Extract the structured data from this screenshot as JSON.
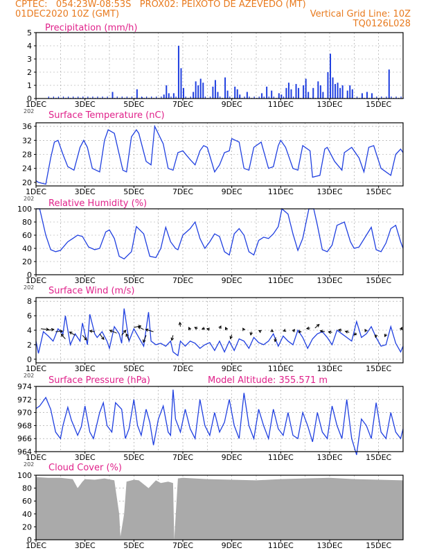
{
  "header": {
    "line1": "CPTEC:   054:23W-08:53S   PROX02: PEIXOTO DE AZEVEDO (MT)",
    "line2_left": "01DEC2020 10Z (GMT)",
    "line2_right": "Vertical Grid Line: 10Z",
    "line3_right": "TQ0126L028"
  },
  "colors": {
    "header": "#e87a1e",
    "title": "#e0218a",
    "series": "#1f3fe0",
    "cloud": "#aaaaaa",
    "grid": "#999999"
  },
  "chart_data": [
    {
      "type": "bar",
      "title": "Precipitation (mm/h)",
      "ylim": [
        0,
        5
      ],
      "yticks": [
        "0",
        "1",
        "2",
        "3",
        "4",
        "5"
      ],
      "xticks": [
        "1DEC",
        "3DEC",
        "5DEC",
        "7DEC",
        "9DEC",
        "11DEC",
        "13DEC",
        "15DEC"
      ],
      "xcut": "202",
      "spikes": [
        [
          4.1,
          0.5
        ],
        [
          5.1,
          0.7
        ],
        [
          5.3,
          0.1
        ],
        [
          6.2,
          0.3
        ],
        [
          6.3,
          1.0
        ],
        [
          6.4,
          0.4
        ],
        [
          6.6,
          0.4
        ],
        [
          6.8,
          4.0
        ],
        [
          6.9,
          2.3
        ],
        [
          7.0,
          0.8
        ],
        [
          7.4,
          0.5
        ],
        [
          7.5,
          1.3
        ],
        [
          7.6,
          1.0
        ],
        [
          7.7,
          1.5
        ],
        [
          7.8,
          1.2
        ],
        [
          8.2,
          0.9
        ],
        [
          8.3,
          1.4
        ],
        [
          8.4,
          0.5
        ],
        [
          8.7,
          1.6
        ],
        [
          8.8,
          0.6
        ],
        [
          9.1,
          0.9
        ],
        [
          9.2,
          0.7
        ],
        [
          9.3,
          0.3
        ],
        [
          9.6,
          0.5
        ],
        [
          10.2,
          0.4
        ],
        [
          10.4,
          0.9
        ],
        [
          10.6,
          0.6
        ],
        [
          10.9,
          0.4
        ],
        [
          11.0,
          0.3
        ],
        [
          11.2,
          0.8
        ],
        [
          11.3,
          1.2
        ],
        [
          11.4,
          0.7
        ],
        [
          11.6,
          1.1
        ],
        [
          11.7,
          0.8
        ],
        [
          11.9,
          1.0
        ],
        [
          12.0,
          1.5
        ],
        [
          12.1,
          0.5
        ],
        [
          12.3,
          0.8
        ],
        [
          12.5,
          1.3
        ],
        [
          12.6,
          1.0
        ],
        [
          12.7,
          0.5
        ],
        [
          12.9,
          2.0
        ],
        [
          13.0,
          3.4
        ],
        [
          13.1,
          1.6
        ],
        [
          13.2,
          1.1
        ],
        [
          13.3,
          1.2
        ],
        [
          13.4,
          0.8
        ],
        [
          13.5,
          1.0
        ],
        [
          13.7,
          0.6
        ],
        [
          13.8,
          1.0
        ],
        [
          13.9,
          0.7
        ],
        [
          14.3,
          0.4
        ],
        [
          14.5,
          0.5
        ],
        [
          14.7,
          0.4
        ],
        [
          15.4,
          2.2
        ]
      ],
      "drizzle": [
        0.05,
        0.15
      ]
    },
    {
      "type": "line",
      "title": "Surface Temperature (nC)",
      "ylim": [
        19,
        37
      ],
      "yticks": [
        "20",
        "24",
        "28",
        "32",
        "36"
      ],
      "xticks": [
        "1DEC",
        "3DEC",
        "5DEC",
        "7DEC",
        "9DEC",
        "11DEC",
        "13DEC",
        "15DEC"
      ],
      "xcut": "202",
      "x": [
        1.0,
        1.1,
        1.4,
        1.6,
        1.75,
        1.9,
        2.1,
        2.3,
        2.55,
        2.8,
        2.95,
        3.1,
        3.3,
        3.6,
        3.8,
        3.95,
        4.2,
        4.55,
        4.7,
        4.9,
        5.1,
        5.2,
        5.5,
        5.7,
        5.85,
        6.2,
        6.4,
        6.6,
        6.8,
        7.0,
        7.3,
        7.5,
        7.7,
        7.85,
        8.0,
        8.3,
        8.5,
        8.7,
        8.9,
        9.0,
        9.3,
        9.5,
        9.7,
        9.9,
        10.2,
        10.5,
        10.7,
        10.9,
        11.0,
        11.2,
        11.5,
        11.7,
        11.9,
        12.2,
        12.3,
        12.6,
        12.8,
        12.9,
        13.2,
        13.5,
        13.6,
        13.9,
        14.2,
        14.4,
        14.6,
        14.8,
        15.1,
        15.5,
        15.7,
        15.9,
        16.0
      ],
      "y": [
        20.5,
        20.0,
        19.5,
        27.0,
        31.5,
        32.0,
        28.0,
        24.5,
        23.5,
        30.0,
        32.0,
        30.0,
        24.0,
        23.0,
        32.0,
        35.0,
        34.0,
        23.5,
        23.0,
        33.0,
        35.0,
        34.0,
        26.0,
        25.0,
        36.0,
        31.0,
        24.0,
        23.5,
        28.5,
        29.0,
        26.5,
        25.0,
        29.0,
        30.5,
        30.0,
        23.0,
        25.0,
        28.5,
        29.0,
        32.5,
        31.5,
        24.0,
        23.5,
        30.0,
        31.5,
        24.0,
        24.5,
        30.5,
        32.0,
        30.0,
        24.0,
        23.5,
        30.5,
        29.0,
        21.5,
        22.0,
        29.5,
        30.0,
        26.0,
        23.5,
        28.5,
        30.0,
        27.0,
        23.0,
        30.0,
        30.5,
        24.0,
        22.0,
        28.0,
        29.5,
        28.5
      ]
    },
    {
      "type": "line",
      "title": "Relative Humidity (%)",
      "ylim": [
        0,
        100
      ],
      "yticks": [
        "0",
        "20",
        "40",
        "60",
        "80",
        "100"
      ],
      "xticks": [
        "1DEC",
        "3DEC",
        "5DEC",
        "7DEC",
        "9DEC",
        "11DEC",
        "13DEC",
        "15DEC"
      ],
      "xcut": "202",
      "x": [
        1.0,
        1.15,
        1.4,
        1.6,
        1.8,
        2.0,
        2.3,
        2.5,
        2.7,
        2.9,
        3.15,
        3.4,
        3.6,
        3.85,
        4.0,
        4.2,
        4.4,
        4.6,
        4.9,
        5.1,
        5.4,
        5.65,
        5.9,
        6.1,
        6.3,
        6.5,
        6.7,
        6.8,
        7.0,
        7.3,
        7.5,
        7.7,
        7.9,
        8.1,
        8.3,
        8.5,
        8.7,
        8.9,
        9.1,
        9.3,
        9.5,
        9.7,
        9.9,
        10.1,
        10.3,
        10.5,
        10.7,
        10.9,
        11.05,
        11.3,
        11.5,
        11.7,
        11.9,
        12.15,
        12.35,
        12.5,
        12.7,
        12.9,
        13.1,
        13.3,
        13.6,
        13.85,
        14.0,
        14.2,
        14.5,
        14.7,
        14.9,
        15.1,
        15.3,
        15.5,
        15.7,
        15.9,
        16.0
      ],
      "y": [
        100,
        100,
        60,
        38,
        35,
        37,
        50,
        55,
        60,
        58,
        42,
        38,
        40,
        65,
        68,
        55,
        28,
        24,
        35,
        73,
        62,
        28,
        26,
        40,
        72,
        50,
        40,
        38,
        60,
        70,
        80,
        55,
        40,
        50,
        62,
        58,
        35,
        30,
        62,
        70,
        60,
        35,
        30,
        52,
        57,
        55,
        62,
        73,
        100,
        92,
        62,
        37,
        55,
        100,
        100,
        75,
        38,
        35,
        45,
        75,
        80,
        50,
        40,
        42,
        60,
        72,
        38,
        35,
        48,
        70,
        75,
        50,
        40
      ]
    },
    {
      "type": "line",
      "title": "Surface Wind (m/s)",
      "ylim": [
        -0.5,
        8.5
      ],
      "yticks": [
        "0",
        "2",
        "4",
        "6",
        "8"
      ],
      "xticks": [
        "1DEC",
        "3DEC",
        "5DEC",
        "7DEC",
        "9DEC",
        "11DEC",
        "13DEC",
        "15DEC"
      ],
      "xcut": "202",
      "x": [
        1.0,
        1.1,
        1.3,
        1.5,
        1.7,
        1.9,
        2.1,
        2.2,
        2.4,
        2.6,
        2.8,
        2.9,
        3.1,
        3.2,
        3.4,
        3.5,
        3.7,
        3.9,
        4.0,
        4.2,
        4.4,
        4.5,
        4.6,
        4.8,
        5.0,
        5.2,
        5.4,
        5.6,
        5.7,
        5.9,
        6.1,
        6.3,
        6.5,
        6.6,
        6.8,
        6.9,
        7.1,
        7.3,
        7.5,
        7.7,
        7.9,
        8.1,
        8.3,
        8.5,
        8.7,
        8.9,
        9.1,
        9.3,
        9.5,
        9.7,
        9.9,
        10.1,
        10.3,
        10.5,
        10.7,
        10.9,
        11.1,
        11.3,
        11.5,
        11.7,
        11.9,
        12.1,
        12.3,
        12.5,
        12.7,
        12.9,
        13.1,
        13.3,
        13.5,
        13.7,
        13.9,
        14.1,
        14.3,
        14.5,
        14.7,
        14.9,
        15.1,
        15.3,
        15.5,
        15.7,
        15.9,
        16.0
      ],
      "y": [
        2.5,
        0.8,
        3.8,
        3.2,
        2.5,
        4.2,
        3.5,
        6.0,
        2.0,
        3.5,
        2.5,
        5.0,
        2.0,
        6.2,
        3.5,
        3.0,
        3.8,
        2.5,
        1.5,
        4.5,
        3.5,
        2.2,
        7.0,
        2.5,
        4.2,
        3.0,
        1.8,
        6.5,
        2.5,
        2.0,
        2.2,
        1.8,
        2.5,
        1.0,
        0.5,
        2.5,
        1.8,
        2.5,
        2.2,
        1.5,
        2.0,
        2.3,
        1.2,
        2.5,
        1.0,
        2.5,
        1.2,
        2.8,
        2.5,
        1.5,
        3.0,
        2.3,
        2.0,
        2.5,
        3.5,
        1.8,
        3.2,
        2.5,
        2.0,
        4.0,
        3.0,
        1.5,
        2.8,
        3.5,
        3.8,
        3.0,
        2.0,
        4.0,
        3.5,
        3.0,
        2.5,
        5.2,
        3.0,
        3.5,
        4.5,
        3.0,
        1.8,
        2.0,
        4.5,
        2.2,
        1.0,
        1.8
      ],
      "arrows": [
        [
          1.2,
          4.2,
          2.8,
          -0.3
        ],
        [
          1.5,
          4.0,
          2.0,
          0.3
        ],
        [
          1.8,
          3.8,
          2.5,
          0.2
        ],
        [
          2.2,
          2.8,
          -1.5,
          1.7
        ],
        [
          2.6,
          3.3,
          -2.0,
          1.2
        ],
        [
          2.9,
          3.3,
          1.5,
          -1.7
        ],
        [
          3.4,
          3.8,
          -1.8,
          0.3
        ],
        [
          3.6,
          3.5,
          1.5,
          -2.0
        ],
        [
          4.3,
          3.6,
          -2.5,
          1.0
        ],
        [
          4.5,
          3.3,
          1.5,
          1.8
        ],
        [
          4.8,
          2.6,
          -1.0,
          2.3
        ],
        [
          5.0,
          4.4,
          2.5,
          0.5
        ],
        [
          5.4,
          4.1,
          -2.0,
          1.0
        ],
        [
          5.5,
          3.3,
          -1.0,
          -2.5
        ],
        [
          5.8,
          3.8,
          -2.8,
          0.8
        ],
        [
          6.6,
          3.3,
          -0.5,
          -1.8
        ],
        [
          6.9,
          4.5,
          -0.2,
          1.5
        ],
        [
          7.3,
          4.0,
          -0.5,
          1.0
        ],
        [
          7.6,
          4.2,
          -1.0,
          0.5
        ],
        [
          7.9,
          4.3,
          -1.0,
          -0.4
        ],
        [
          8.1,
          4.1,
          -1.0,
          0.3
        ],
        [
          8.5,
          4.2,
          0.5,
          1.0
        ],
        [
          8.8,
          4.0,
          -0.5,
          1.0
        ],
        [
          9.0,
          3.4,
          -0.5,
          -1.5
        ],
        [
          9.5,
          4.0,
          -0.4,
          0.7
        ],
        [
          9.8,
          3.8,
          -0.2,
          -1.2
        ],
        [
          10.2,
          3.8,
          -0.8,
          0.4
        ],
        [
          10.6,
          4.0,
          0.8,
          -0.5
        ],
        [
          10.8,
          3.0,
          -0.3,
          -1.5
        ],
        [
          11.2,
          4.0,
          -0.8,
          -0.3
        ],
        [
          11.5,
          3.8,
          0.6,
          0.8
        ],
        [
          11.8,
          3.9,
          -0.5,
          -0.6
        ],
        [
          12.2,
          4.3,
          -1.2,
          -0.2
        ],
        [
          12.4,
          4.3,
          1.5,
          1.3
        ],
        [
          12.8,
          3.8,
          -1.6,
          0.3
        ],
        [
          13.1,
          3.7,
          -1.3,
          0.2
        ],
        [
          13.5,
          4.0,
          -1.2,
          0.1
        ],
        [
          13.8,
          3.7,
          -1.4,
          0.4
        ],
        [
          14.1,
          3.6,
          -0.9,
          -0.7
        ],
        [
          14.5,
          3.8,
          -0.5,
          0.8
        ],
        [
          14.9,
          3.4,
          -0.2,
          -1.0
        ],
        [
          15.3,
          3.5,
          -0.4,
          -1.0
        ],
        [
          15.9,
          4.0,
          0.5,
          1.0
        ]
      ]
    },
    {
      "type": "line",
      "title": "Surface Pressure (hPa)",
      "annotation": "Model Altitude: 355.571  m",
      "ylim": [
        964,
        974
      ],
      "yticks": [
        "964",
        "966",
        "968",
        "970",
        "972",
        "974"
      ],
      "xticks": [
        "1DEC",
        "3DEC",
        "5DEC",
        "7DEC",
        "9DEC",
        "11DEC",
        "13DEC",
        "15DEC"
      ],
      "xcut": "202",
      "x": [
        1.0,
        1.15,
        1.4,
        1.6,
        1.8,
        2.0,
        2.1,
        2.3,
        2.45,
        2.7,
        2.85,
        3.0,
        3.2,
        3.35,
        3.6,
        3.75,
        3.9,
        4.1,
        4.25,
        4.5,
        4.65,
        4.8,
        5.0,
        5.15,
        5.3,
        5.5,
        5.65,
        5.8,
        6.0,
        6.2,
        6.4,
        6.5,
        6.6,
        6.7,
        6.9,
        7.1,
        7.3,
        7.5,
        7.7,
        7.9,
        8.1,
        8.3,
        8.5,
        8.7,
        8.9,
        9.1,
        9.3,
        9.5,
        9.7,
        9.9,
        10.1,
        10.3,
        10.5,
        10.7,
        10.9,
        11.1,
        11.3,
        11.5,
        11.7,
        11.9,
        12.1,
        12.3,
        12.5,
        12.7,
        12.9,
        13.1,
        13.3,
        13.5,
        13.7,
        13.9,
        14.1,
        14.3,
        14.5,
        14.7,
        14.9,
        15.1,
        15.3,
        15.5,
        15.7,
        15.9,
        16.0
      ],
      "y": [
        970.6,
        971.0,
        972.3,
        970.5,
        967.0,
        966.0,
        968.0,
        970.8,
        968.8,
        966.5,
        967.8,
        971.0,
        967.0,
        966.0,
        970.0,
        971.5,
        968.0,
        967.0,
        971.5,
        970.5,
        966.0,
        967.5,
        972.0,
        968.0,
        966.5,
        970.5,
        968.5,
        965.0,
        969.0,
        971.0,
        967.0,
        966.5,
        973.5,
        969.0,
        967.0,
        970.5,
        967.5,
        966.0,
        972.0,
        968.0,
        966.5,
        970.0,
        967.0,
        968.5,
        972.0,
        968.0,
        966.0,
        973.0,
        968.0,
        966.0,
        970.5,
        968.0,
        966.0,
        970.5,
        967.5,
        966.5,
        970.0,
        966.5,
        966.0,
        970.0,
        968.0,
        965.5,
        970.0,
        967.0,
        966.0,
        971.0,
        968.0,
        966.0,
        972.0,
        966.0,
        963.5,
        969.0,
        968.0,
        966.0,
        971.5,
        967.0,
        966.0,
        970.0,
        967.0,
        966.0,
        967.5
      ]
    },
    {
      "type": "area",
      "title": "Cloud Cover (%)",
      "ylim": [
        0,
        100
      ],
      "yticks": [
        "0",
        "20",
        "40",
        "60",
        "80",
        "100"
      ],
      "xticks": [
        "1DEC",
        "3DEC",
        "5DEC",
        "7DEC",
        "9DEC",
        "11DEC",
        "13DEC",
        "15DEC"
      ],
      "x": [
        1.0,
        1.5,
        2.0,
        2.5,
        2.7,
        2.9,
        3.0,
        3.4,
        3.8,
        4.2,
        4.4,
        4.45,
        4.6,
        4.7,
        5.0,
        5.2,
        5.6,
        5.9,
        6.1,
        6.4,
        6.6,
        6.65,
        6.8,
        7.0,
        8.0,
        9.0,
        10.0,
        11.0,
        12.0,
        13.0,
        14.0,
        15.0,
        16.0
      ],
      "y": [
        97,
        96,
        96,
        94,
        80,
        90,
        94,
        93,
        95,
        92,
        40,
        5,
        40,
        90,
        93,
        92,
        80,
        92,
        88,
        90,
        88,
        0,
        95,
        96,
        94,
        93,
        92,
        94,
        95,
        96,
        94,
        93,
        92
      ]
    }
  ]
}
